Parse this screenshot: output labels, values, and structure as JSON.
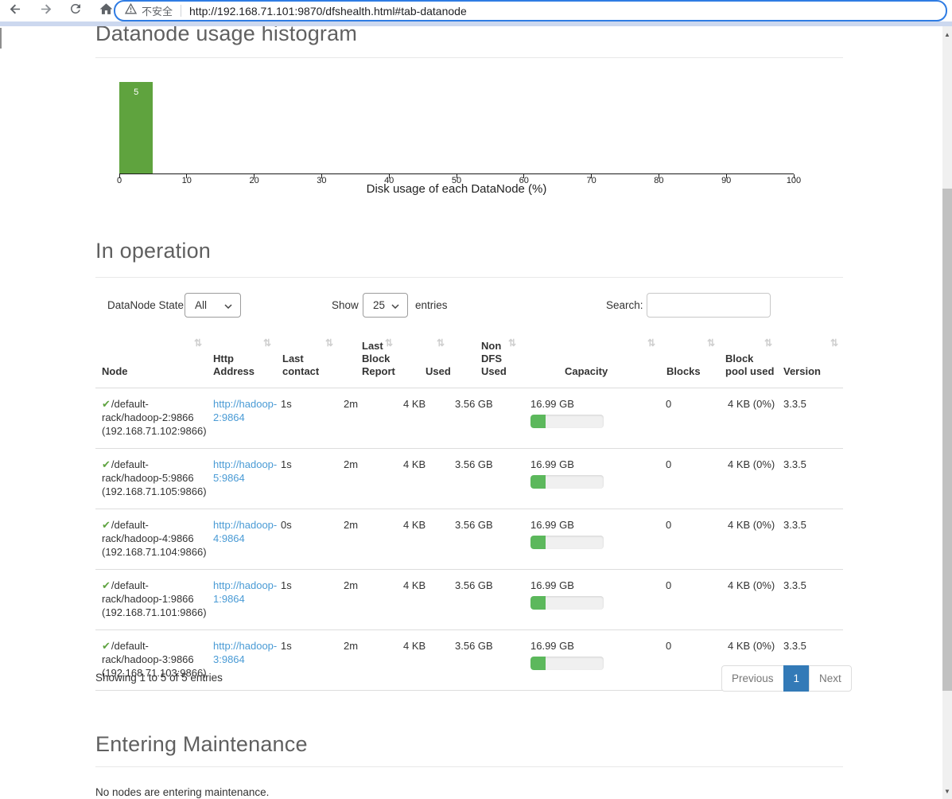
{
  "browser": {
    "security_label": "不安全",
    "url": "http://192.168.71.101:9870/dfshealth.html#tab-datanode"
  },
  "histogram_section": {
    "title": "Datanode usage histogram"
  },
  "chart_data": {
    "type": "bar",
    "title": "Datanode usage histogram",
    "xlabel": "Disk usage of each DataNode (%)",
    "ylabel": "",
    "xlim": [
      0,
      100
    ],
    "xticks": [
      0,
      10,
      20,
      30,
      40,
      50,
      60,
      70,
      80,
      90,
      100
    ],
    "bins": [
      {
        "x0": 0,
        "x1": 5,
        "count": 5,
        "label": "5"
      }
    ],
    "bar_color": "#5fa33e",
    "legend": "none",
    "grid": false
  },
  "in_operation": {
    "title": "In operation",
    "controls": {
      "state_label": "DataNode State",
      "state_value": "All",
      "show_label": "Show",
      "page_size": "25",
      "entries_label": "entries",
      "search_label": "Search:",
      "search_value": ""
    },
    "table": {
      "columns": [
        "Node",
        "Http Address",
        "Last contact",
        "Last Block Report",
        "Used",
        "Non DFS Used",
        "Capacity",
        "Blocks",
        "Block pool used",
        "Version"
      ],
      "rows": [
        {
          "node": "/default-rack/hadoop-2:9866 (192.168.71.102:9866)",
          "http_address": "http://hadoop-2:9864",
          "last_contact": "1s",
          "last_block_report": "2m",
          "used": "4 KB",
          "non_dfs_used": "3.56 GB",
          "capacity": "16.99 GB",
          "capacity_used_pct": 21,
          "blocks": "0",
          "block_pool_used": "4 KB (0%)",
          "version": "3.3.5"
        },
        {
          "node": "/default-rack/hadoop-5:9866 (192.168.71.105:9866)",
          "http_address": "http://hadoop-5:9864",
          "last_contact": "1s",
          "last_block_report": "2m",
          "used": "4 KB",
          "non_dfs_used": "3.56 GB",
          "capacity": "16.99 GB",
          "capacity_used_pct": 21,
          "blocks": "0",
          "block_pool_used": "4 KB (0%)",
          "version": "3.3.5"
        },
        {
          "node": "/default-rack/hadoop-4:9866 (192.168.71.104:9866)",
          "http_address": "http://hadoop-4:9864",
          "last_contact": "0s",
          "last_block_report": "2m",
          "used": "4 KB",
          "non_dfs_used": "3.56 GB",
          "capacity": "16.99 GB",
          "capacity_used_pct": 21,
          "blocks": "0",
          "block_pool_used": "4 KB (0%)",
          "version": "3.3.5"
        },
        {
          "node": "/default-rack/hadoop-1:9866 (192.168.71.101:9866)",
          "http_address": "http://hadoop-1:9864",
          "last_contact": "1s",
          "last_block_report": "2m",
          "used": "4 KB",
          "non_dfs_used": "3.56 GB",
          "capacity": "16.99 GB",
          "capacity_used_pct": 21,
          "blocks": "0",
          "block_pool_used": "4 KB (0%)",
          "version": "3.3.5"
        },
        {
          "node": "/default-rack/hadoop-3:9866 (192.168.71.103:9866)",
          "http_address": "http://hadoop-3:9864",
          "last_contact": "1s",
          "last_block_report": "2m",
          "used": "4 KB",
          "non_dfs_used": "3.56 GB",
          "capacity": "16.99 GB",
          "capacity_used_pct": 21,
          "blocks": "0",
          "block_pool_used": "4 KB (0%)",
          "version": "3.3.5"
        }
      ]
    },
    "footer": {
      "showing_text": "Showing 1 to 5 of 5 entries",
      "previous_label": "Previous",
      "current_page": "1",
      "next_label": "Next"
    }
  },
  "entering_maintenance": {
    "title": "Entering Maintenance",
    "empty_text": "No nodes are entering maintenance."
  },
  "colors": {
    "histogram_bar": "#5fa33e",
    "progress_fill": "#5cb85c",
    "link": "#4a9bd5",
    "active_page_bg": "#337ab7",
    "check_mark": "#5fa341",
    "urlbar_focus_border": "#2f7ce3"
  }
}
